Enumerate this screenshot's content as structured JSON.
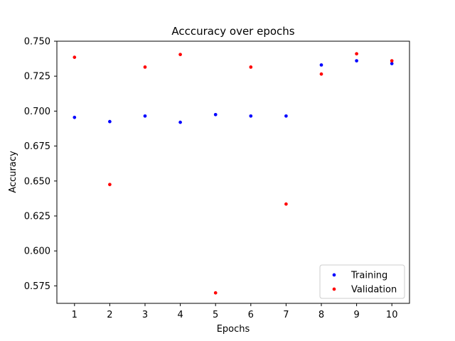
{
  "chart_data": {
    "type": "scatter",
    "title": "Acccuracy over epochs",
    "xlabel": "Epochs",
    "ylabel": "Accuracy",
    "x": [
      1,
      2,
      3,
      4,
      5,
      6,
      7,
      8,
      9,
      10
    ],
    "xticks": [
      "1",
      "2",
      "3",
      "4",
      "5",
      "6",
      "7",
      "8",
      "9",
      "10"
    ],
    "yticks": [
      "0.575",
      "0.600",
      "0.625",
      "0.650",
      "0.675",
      "0.700",
      "0.725",
      "0.750"
    ],
    "ytick_values": [
      0.575,
      0.6,
      0.625,
      0.65,
      0.675,
      0.7,
      0.725,
      0.75
    ],
    "xlim": [
      0.5,
      10.5
    ],
    "ylim": [
      0.5625,
      0.75
    ],
    "grid": false,
    "legend_position": "bottom-right",
    "series": [
      {
        "name": "Training",
        "color": "#0000ff",
        "values": [
          0.6955,
          0.6925,
          0.6965,
          0.692,
          0.6975,
          0.6965,
          0.6965,
          0.733,
          0.736,
          0.734
        ]
      },
      {
        "name": "Validation",
        "color": "#ff0000",
        "values": [
          0.7385,
          0.6475,
          0.7315,
          0.7405,
          0.57,
          0.7315,
          0.6335,
          0.7265,
          0.741,
          0.736
        ]
      }
    ]
  }
}
